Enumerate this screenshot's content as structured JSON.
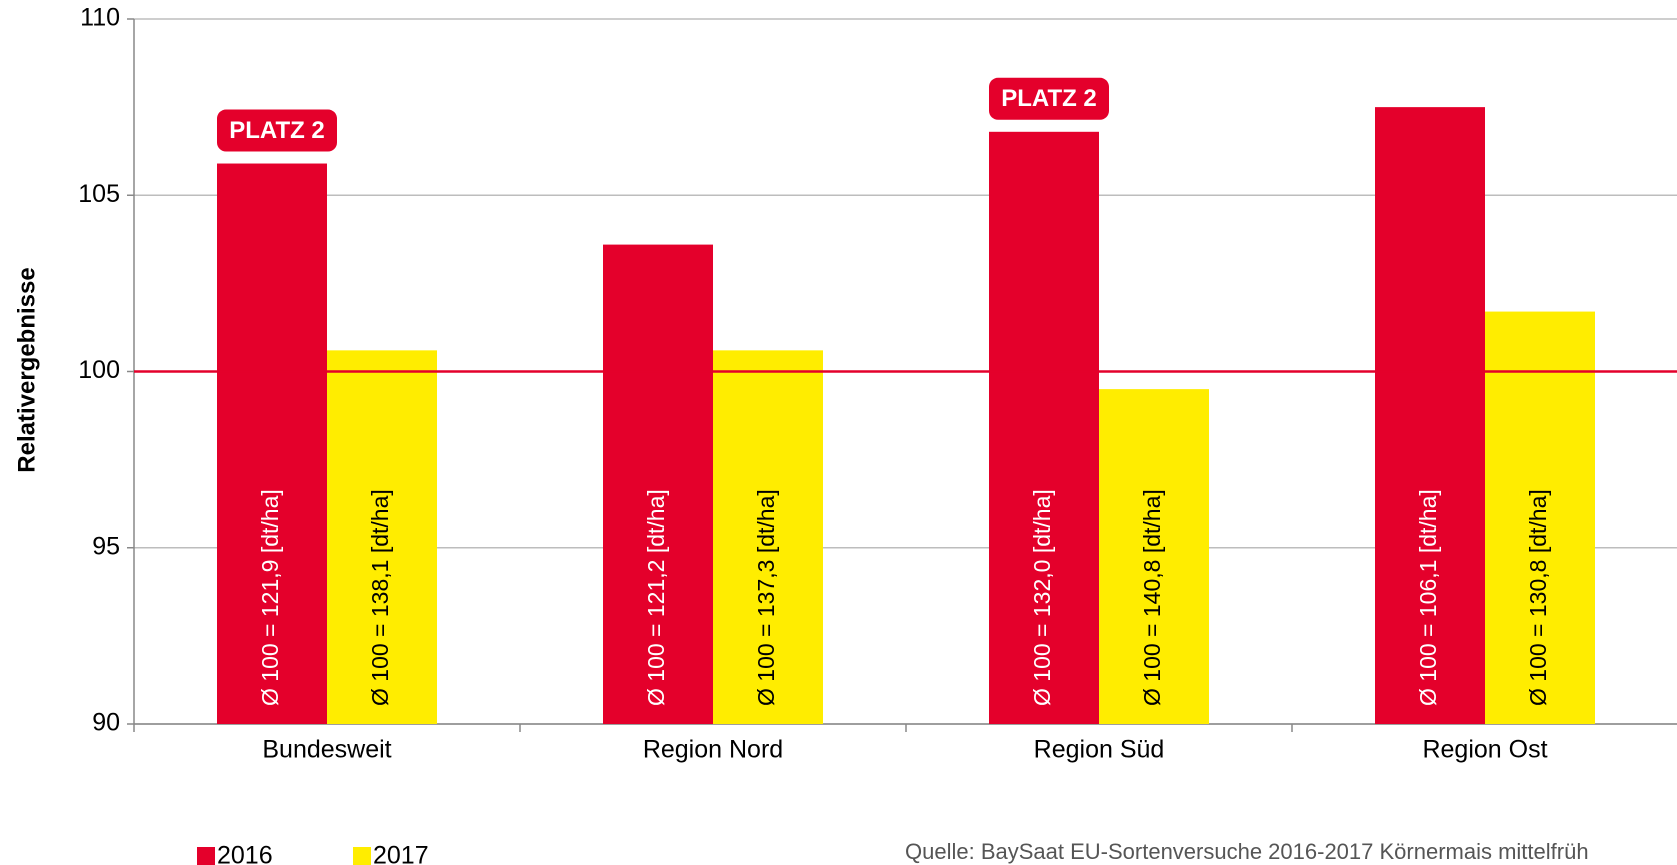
{
  "chart_data": {
    "type": "bar",
    "y_label": "Relativergebnisse",
    "categories": [
      "Bundesweit",
      "Region Nord",
      "Region Süd",
      "Region Ost"
    ],
    "series": [
      {
        "name": "2016",
        "color": "#e4002b",
        "values": [
          105.9,
          103.6,
          106.8,
          107.5
        ],
        "bar_labels": [
          "Ø 100 = 121,9 [dt/ha]",
          "Ø 100 = 121,2 [dt/ha]",
          "Ø 100 = 132,0 [dt/ha]",
          "Ø 100 = 106,1 [dt/ha]"
        ]
      },
      {
        "name": "2017",
        "color": "#ffed00",
        "values": [
          100.6,
          100.6,
          99.5,
          101.7
        ],
        "bar_labels": [
          "Ø 100 = 138,1 [dt/ha]",
          "Ø 100 = 137,3 [dt/ha]",
          "Ø 100 = 140,8 [dt/ha]",
          "Ø 100 = 130,8 [dt/ha]"
        ]
      }
    ],
    "ylim": [
      90,
      110
    ],
    "yticks": [
      90,
      95,
      100,
      105,
      110
    ],
    "grid": true,
    "reference_line": {
      "value": 100,
      "color": "#e4002b"
    },
    "badges": [
      {
        "label": "PLATZ 2",
        "category": "Bundesweit"
      },
      {
        "label": "PLATZ 2",
        "category": "Region Süd"
      }
    ],
    "source": "Quelle: BaySaat EU-Sortenversuche 2016-2017 Körnermais mittelfrüh"
  }
}
